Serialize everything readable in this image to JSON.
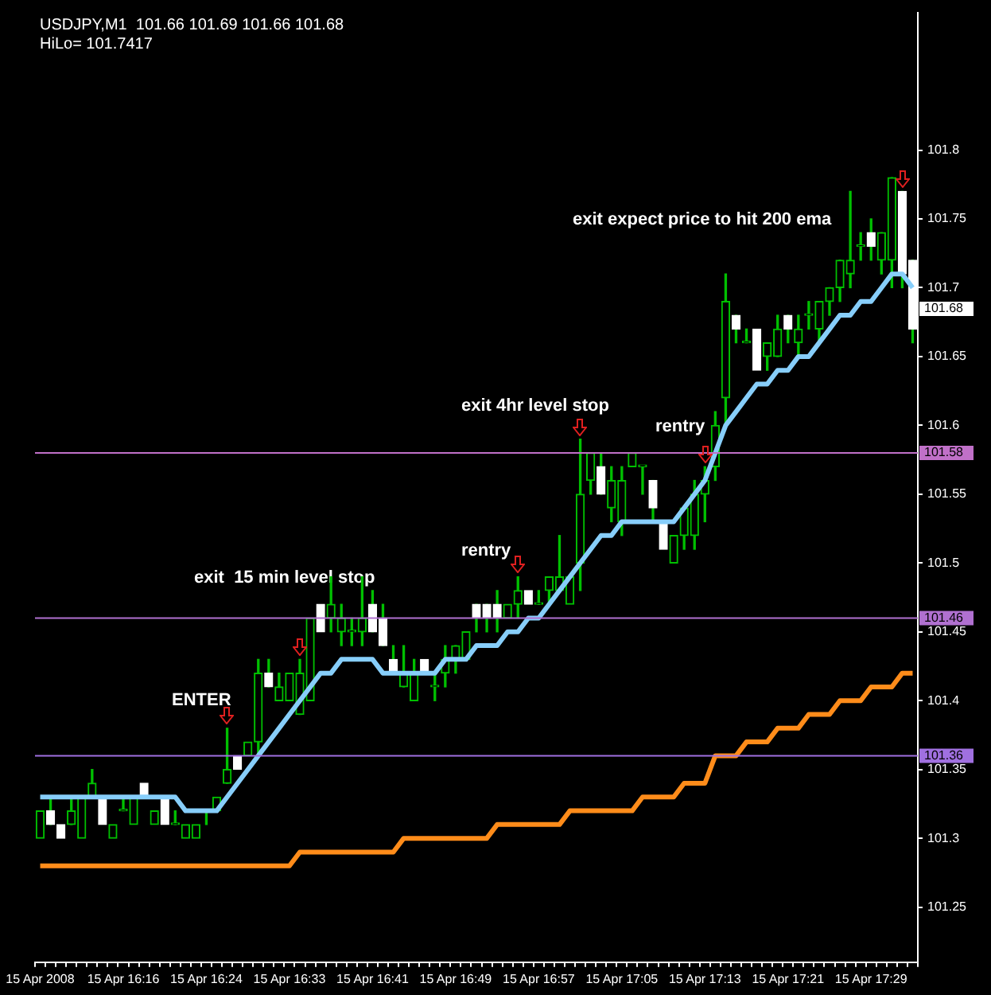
{
  "chart_data": {
    "type": "candlestick",
    "title": "USDJPY,M1  101.66 101.69 101.66 101.68",
    "subtitle": "HiLo= 101.7417",
    "categories": [
      "15 Apr 2008",
      null,
      null,
      null,
      null,
      null,
      null,
      null,
      "15 Apr 16:16",
      null,
      null,
      null,
      null,
      null,
      null,
      null,
      "15 Apr 16:24",
      null,
      null,
      null,
      null,
      null,
      null,
      null,
      "15 Apr 16:33",
      null,
      null,
      null,
      null,
      null,
      null,
      null,
      "15 Apr 16:41",
      null,
      null,
      null,
      null,
      null,
      null,
      null,
      "15 Apr 16:49",
      null,
      null,
      null,
      null,
      null,
      null,
      null,
      "15 Apr 16:57",
      null,
      null,
      null,
      null,
      null,
      null,
      null,
      "15 Apr 17:05",
      null,
      null,
      null,
      null,
      null,
      null,
      null,
      "15 Apr 17:13",
      null,
      null,
      null,
      null,
      null,
      null,
      null,
      "15 Apr 17:21",
      null,
      null,
      null,
      null,
      null,
      null,
      null,
      "15 Apr 17:29",
      null,
      null,
      null,
      null
    ],
    "ohlc": [
      [
        101.3,
        101.32,
        101.3,
        101.32
      ],
      [
        101.32,
        101.33,
        101.31,
        101.31
      ],
      [
        101.31,
        101.31,
        101.3,
        101.3
      ],
      [
        101.31,
        101.33,
        101.31,
        101.32
      ],
      [
        101.3,
        101.33,
        101.3,
        101.33
      ],
      [
        101.33,
        101.35,
        101.33,
        101.34
      ],
      [
        101.33,
        101.33,
        101.31,
        101.31
      ],
      [
        101.3,
        101.31,
        101.3,
        101.31
      ],
      [
        101.32,
        101.33,
        101.32,
        101.32
      ],
      [
        101.31,
        101.33,
        101.31,
        101.33
      ],
      [
        101.34,
        101.34,
        101.33,
        101.33
      ],
      [
        101.31,
        101.32,
        101.31,
        101.32
      ],
      [
        101.33,
        101.33,
        101.31,
        101.31
      ],
      [
        101.31,
        101.32,
        101.31,
        101.31
      ],
      [
        101.3,
        101.31,
        101.3,
        101.31
      ],
      [
        101.3,
        101.31,
        101.3,
        101.31
      ],
      [
        101.32,
        101.32,
        101.31,
        101.32
      ],
      [
        101.32,
        101.33,
        101.32,
        101.33
      ],
      [
        101.34,
        101.38,
        101.34,
        101.35
      ],
      [
        101.36,
        101.36,
        101.35,
        101.35
      ],
      [
        101.36,
        101.37,
        101.36,
        101.37
      ],
      [
        101.37,
        101.43,
        101.36,
        101.42
      ],
      [
        101.42,
        101.43,
        101.41,
        101.41
      ],
      [
        101.4,
        101.42,
        101.4,
        101.41
      ],
      [
        101.4,
        101.42,
        101.4,
        101.42
      ],
      [
        101.39,
        101.43,
        101.39,
        101.42
      ],
      [
        101.4,
        101.46,
        101.4,
        101.46
      ],
      [
        101.47,
        101.47,
        101.45,
        101.45
      ],
      [
        101.46,
        101.49,
        101.45,
        101.47
      ],
      [
        101.45,
        101.47,
        101.44,
        101.46
      ],
      [
        101.45,
        101.46,
        101.44,
        101.45
      ],
      [
        101.45,
        101.49,
        101.44,
        101.46
      ],
      [
        101.47,
        101.48,
        101.45,
        101.45
      ],
      [
        101.46,
        101.47,
        101.44,
        101.44
      ],
      [
        101.43,
        101.44,
        101.42,
        101.42
      ],
      [
        101.41,
        101.44,
        101.41,
        101.42
      ],
      [
        101.4,
        101.43,
        101.4,
        101.42
      ],
      [
        101.43,
        101.43,
        101.42,
        101.42
      ],
      [
        101.41,
        101.42,
        101.4,
        101.41
      ],
      [
        101.42,
        101.44,
        101.41,
        101.43
      ],
      [
        101.43,
        101.44,
        101.42,
        101.44
      ],
      [
        101.43,
        101.45,
        101.43,
        101.45
      ],
      [
        101.47,
        101.47,
        101.45,
        101.46
      ],
      [
        101.47,
        101.47,
        101.45,
        101.46
      ],
      [
        101.47,
        101.48,
        101.45,
        101.46
      ],
      [
        101.46,
        101.47,
        101.46,
        101.47
      ],
      [
        101.47,
        101.49,
        101.46,
        101.48
      ],
      [
        101.48,
        101.48,
        101.47,
        101.47
      ],
      [
        101.47,
        101.48,
        101.47,
        101.47
      ],
      [
        101.48,
        101.49,
        101.47,
        101.49
      ],
      [
        101.48,
        101.52,
        101.48,
        101.49
      ],
      [
        101.47,
        101.49,
        101.47,
        101.49
      ],
      [
        101.5,
        101.59,
        101.48,
        101.55
      ],
      [
        101.56,
        101.58,
        101.55,
        101.58
      ],
      [
        101.57,
        101.58,
        101.55,
        101.55
      ],
      [
        101.54,
        101.57,
        101.53,
        101.56
      ],
      [
        101.53,
        101.57,
        101.52,
        101.56
      ],
      [
        101.57,
        101.58,
        101.57,
        101.58
      ],
      [
        101.57,
        101.57,
        101.55,
        101.57
      ],
      [
        101.56,
        101.56,
        101.53,
        101.54
      ],
      [
        101.53,
        101.53,
        101.51,
        101.51
      ],
      [
        101.5,
        101.52,
        101.5,
        101.52
      ],
      [
        101.52,
        101.54,
        101.51,
        101.54
      ],
      [
        101.52,
        101.56,
        101.51,
        101.55
      ],
      [
        101.55,
        101.57,
        101.53,
        101.56
      ],
      [
        101.57,
        101.61,
        101.56,
        101.6
      ],
      [
        101.62,
        101.71,
        101.6,
        101.69
      ],
      [
        101.68,
        101.68,
        101.66,
        101.67
      ],
      [
        101.66,
        101.67,
        101.66,
        101.66
      ],
      [
        101.67,
        101.67,
        101.64,
        101.64
      ],
      [
        101.65,
        101.66,
        101.64,
        101.66
      ],
      [
        101.65,
        101.68,
        101.65,
        101.67
      ],
      [
        101.68,
        101.68,
        101.66,
        101.67
      ],
      [
        101.66,
        101.68,
        101.65,
        101.67
      ],
      [
        101.68,
        101.69,
        101.67,
        101.68
      ],
      [
        101.67,
        101.69,
        101.66,
        101.69
      ],
      [
        101.69,
        101.7,
        101.68,
        101.7
      ],
      [
        101.7,
        101.72,
        101.69,
        101.72
      ],
      [
        101.71,
        101.77,
        101.7,
        101.72
      ],
      [
        101.73,
        101.74,
        101.72,
        101.73
      ],
      [
        101.74,
        101.75,
        101.72,
        101.73
      ],
      [
        101.72,
        101.74,
        101.71,
        101.74
      ],
      [
        101.72,
        101.78,
        101.7,
        101.78
      ],
      [
        101.77,
        101.77,
        101.7,
        101.71
      ],
      [
        101.72,
        101.72,
        101.66,
        101.67
      ]
    ],
    "series": [
      {
        "type": "line",
        "color": "#87cefa",
        "values": [
          101.33,
          101.33,
          101.33,
          101.33,
          101.33,
          101.33,
          101.33,
          101.33,
          101.33,
          101.33,
          101.33,
          101.33,
          101.33,
          101.33,
          101.32,
          101.32,
          101.32,
          101.32,
          101.33,
          101.34,
          101.35,
          101.36,
          101.37,
          101.38,
          101.39,
          101.4,
          101.41,
          101.42,
          101.42,
          101.43,
          101.43,
          101.43,
          101.43,
          101.42,
          101.42,
          101.42,
          101.42,
          101.42,
          101.42,
          101.43,
          101.43,
          101.43,
          101.44,
          101.44,
          101.44,
          101.45,
          101.45,
          101.46,
          101.46,
          101.47,
          101.48,
          101.49,
          101.5,
          101.51,
          101.52,
          101.52,
          101.53,
          101.53,
          101.53,
          101.53,
          101.53,
          101.53,
          101.54,
          101.55,
          101.56,
          101.58,
          101.6,
          101.61,
          101.62,
          101.63,
          101.63,
          101.64,
          101.64,
          101.65,
          101.65,
          101.66,
          101.67,
          101.68,
          101.68,
          101.69,
          101.69,
          101.7,
          101.71,
          101.71,
          101.7
        ]
      },
      {
        "type": "line",
        "color": "#ff8c1a",
        "values": [
          101.28,
          101.28,
          101.28,
          101.28,
          101.28,
          101.28,
          101.28,
          101.28,
          101.28,
          101.28,
          101.28,
          101.28,
          101.28,
          101.28,
          101.28,
          101.28,
          101.28,
          101.28,
          101.28,
          101.28,
          101.28,
          101.28,
          101.28,
          101.28,
          101.28,
          101.29,
          101.29,
          101.29,
          101.29,
          101.29,
          101.29,
          101.29,
          101.29,
          101.29,
          101.29,
          101.3,
          101.3,
          101.3,
          101.3,
          101.3,
          101.3,
          101.3,
          101.3,
          101.3,
          101.31,
          101.31,
          101.31,
          101.31,
          101.31,
          101.31,
          101.31,
          101.32,
          101.32,
          101.32,
          101.32,
          101.32,
          101.32,
          101.32,
          101.33,
          101.33,
          101.33,
          101.33,
          101.34,
          101.34,
          101.34,
          101.36,
          101.36,
          101.36,
          101.37,
          101.37,
          101.37,
          101.38,
          101.38,
          101.38,
          101.39,
          101.39,
          101.39,
          101.4,
          101.4,
          101.4,
          101.41,
          101.41,
          101.41,
          101.42,
          101.42
        ]
      }
    ],
    "ylim": [
      101.21,
      101.9
    ],
    "yticks": [
      101.25,
      101.3,
      101.35,
      101.4,
      101.45,
      101.5,
      101.55,
      101.6,
      101.65,
      101.7,
      101.75,
      101.8
    ],
    "ref_lines": [
      {
        "axis": "y",
        "value": 101.58,
        "label": "101.58",
        "color": "#c070c8"
      },
      {
        "axis": "y",
        "value": 101.46,
        "label": "101.46",
        "color": "#b070d0"
      },
      {
        "axis": "y",
        "value": 101.36,
        "label": "101.36",
        "color": "#a070e0"
      }
    ],
    "annotations": [
      "ENTER",
      "exit  15 min level stop",
      "rentry",
      "exit 4hr level stop",
      "rentry",
      "exit expect price to hit 200 ema",
      "101.68"
    ]
  }
}
